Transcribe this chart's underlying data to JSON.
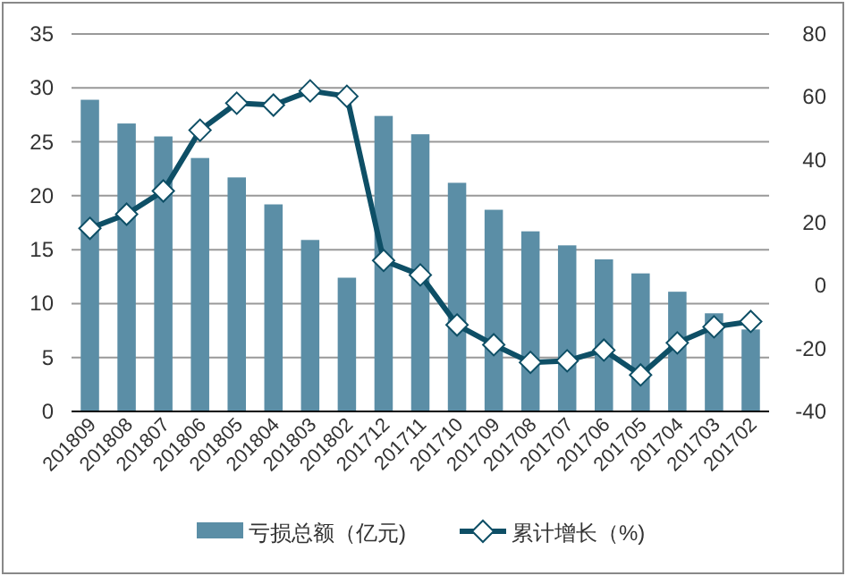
{
  "chart_data": {
    "type": "bar",
    "categories": [
      "201809",
      "201808",
      "201807",
      "201806",
      "201805",
      "201804",
      "201803",
      "201802",
      "201712",
      "201711",
      "201710",
      "201709",
      "201708",
      "201707",
      "201706",
      "201705",
      "201704",
      "201703",
      "201702"
    ],
    "series": [
      {
        "name": "亏损总额（亿元)",
        "color": "#5b8ea6",
        "values": [
          28.9,
          26.7,
          25.5,
          23.5,
          21.7,
          19.2,
          15.9,
          12.4,
          27.4,
          25.7,
          21.2,
          18.7,
          16.7,
          15.4,
          14.1,
          12.8,
          11.1,
          9.1,
          7.6
        ]
      },
      {
        "name": "累计增长（%)",
        "type": "line",
        "axis": "y2",
        "color": "#0e4f66",
        "marker": "diamond",
        "values": [
          18.2,
          22.7,
          30.1,
          49.4,
          58,
          57.4,
          61.9,
          60.2,
          8,
          3.4,
          -12.5,
          -18.8,
          -24.4,
          -23.9,
          -20.5,
          -28.4,
          -18.2,
          -13.1,
          -11.4
        ]
      }
    ],
    "ylim": [
      0,
      35
    ],
    "yticks": [
      0,
      5,
      10,
      15,
      20,
      25,
      30,
      35
    ],
    "y2lim": [
      -40,
      80
    ],
    "y2ticks": [
      -40,
      -20,
      0,
      20,
      40,
      60,
      80
    ],
    "grid": "y",
    "legend": "bottom"
  }
}
